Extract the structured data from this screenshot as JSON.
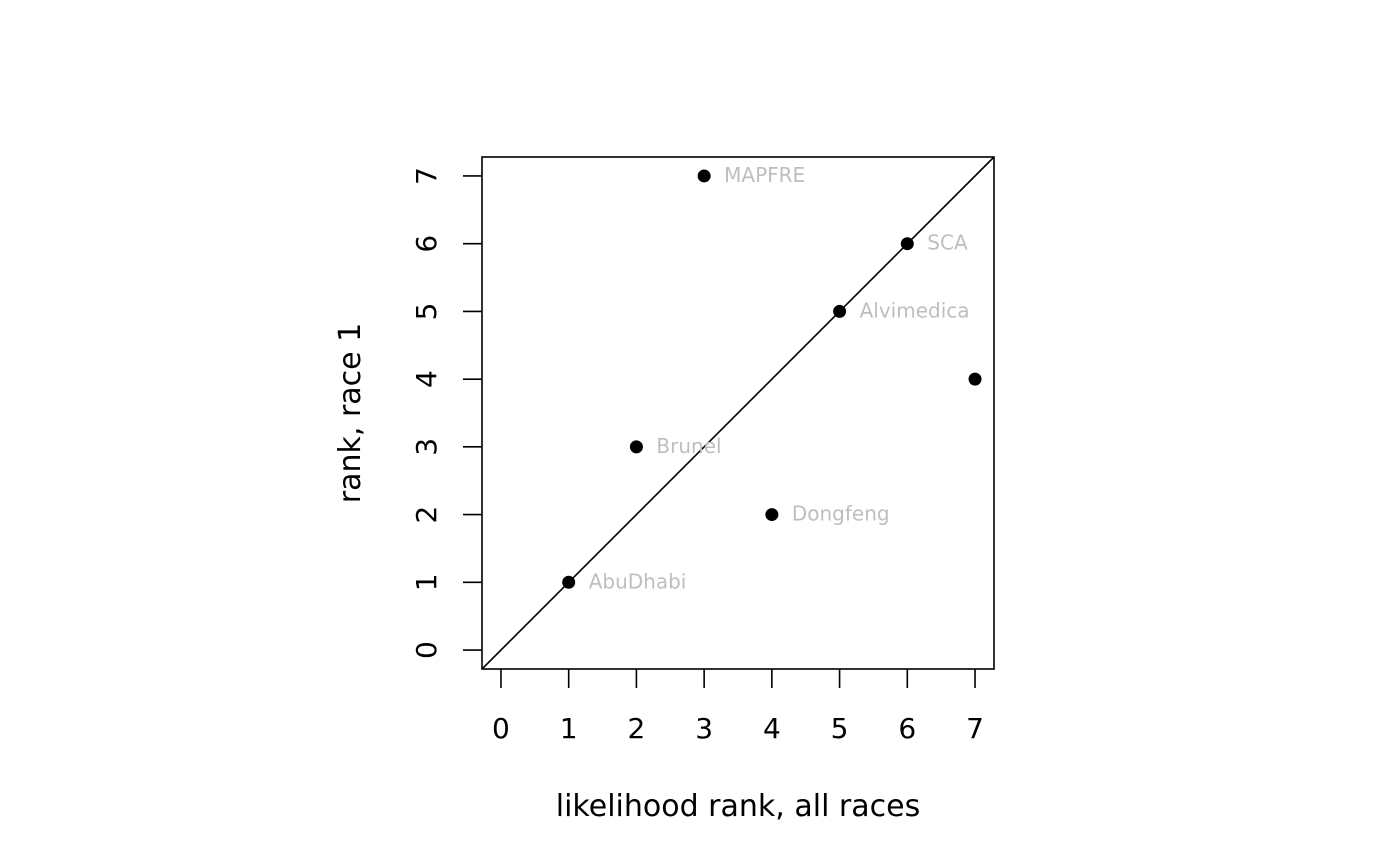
{
  "colors": {
    "points": "#000000",
    "point_labels": "#bebebe",
    "axes": "#000000",
    "background": "#ffffff"
  },
  "chart_data": {
    "type": "scatter",
    "title": "",
    "xlabel": "likelihood rank, all races",
    "ylabel": "rank, race 1",
    "xlim": [
      -0.28,
      7.28
    ],
    "ylim": [
      -0.28,
      7.28
    ],
    "xticks": [
      "0",
      "1",
      "2",
      "3",
      "4",
      "5",
      "6",
      "7"
    ],
    "yticks": [
      "0",
      "1",
      "2",
      "3",
      "4",
      "5",
      "6",
      "7"
    ],
    "grid": false,
    "reference_line": "y = x",
    "points": [
      {
        "x": 1,
        "y": 1,
        "label": "AbuDhabi"
      },
      {
        "x": 2,
        "y": 3,
        "label": "Brunel"
      },
      {
        "x": 3,
        "y": 7,
        "label": "MAPFRE"
      },
      {
        "x": 4,
        "y": 2,
        "label": "Dongfeng"
      },
      {
        "x": 5,
        "y": 5,
        "label": "Alvimedica"
      },
      {
        "x": 6,
        "y": 6,
        "label": "SCA"
      },
      {
        "x": 7,
        "y": 4,
        "label": ""
      }
    ]
  }
}
